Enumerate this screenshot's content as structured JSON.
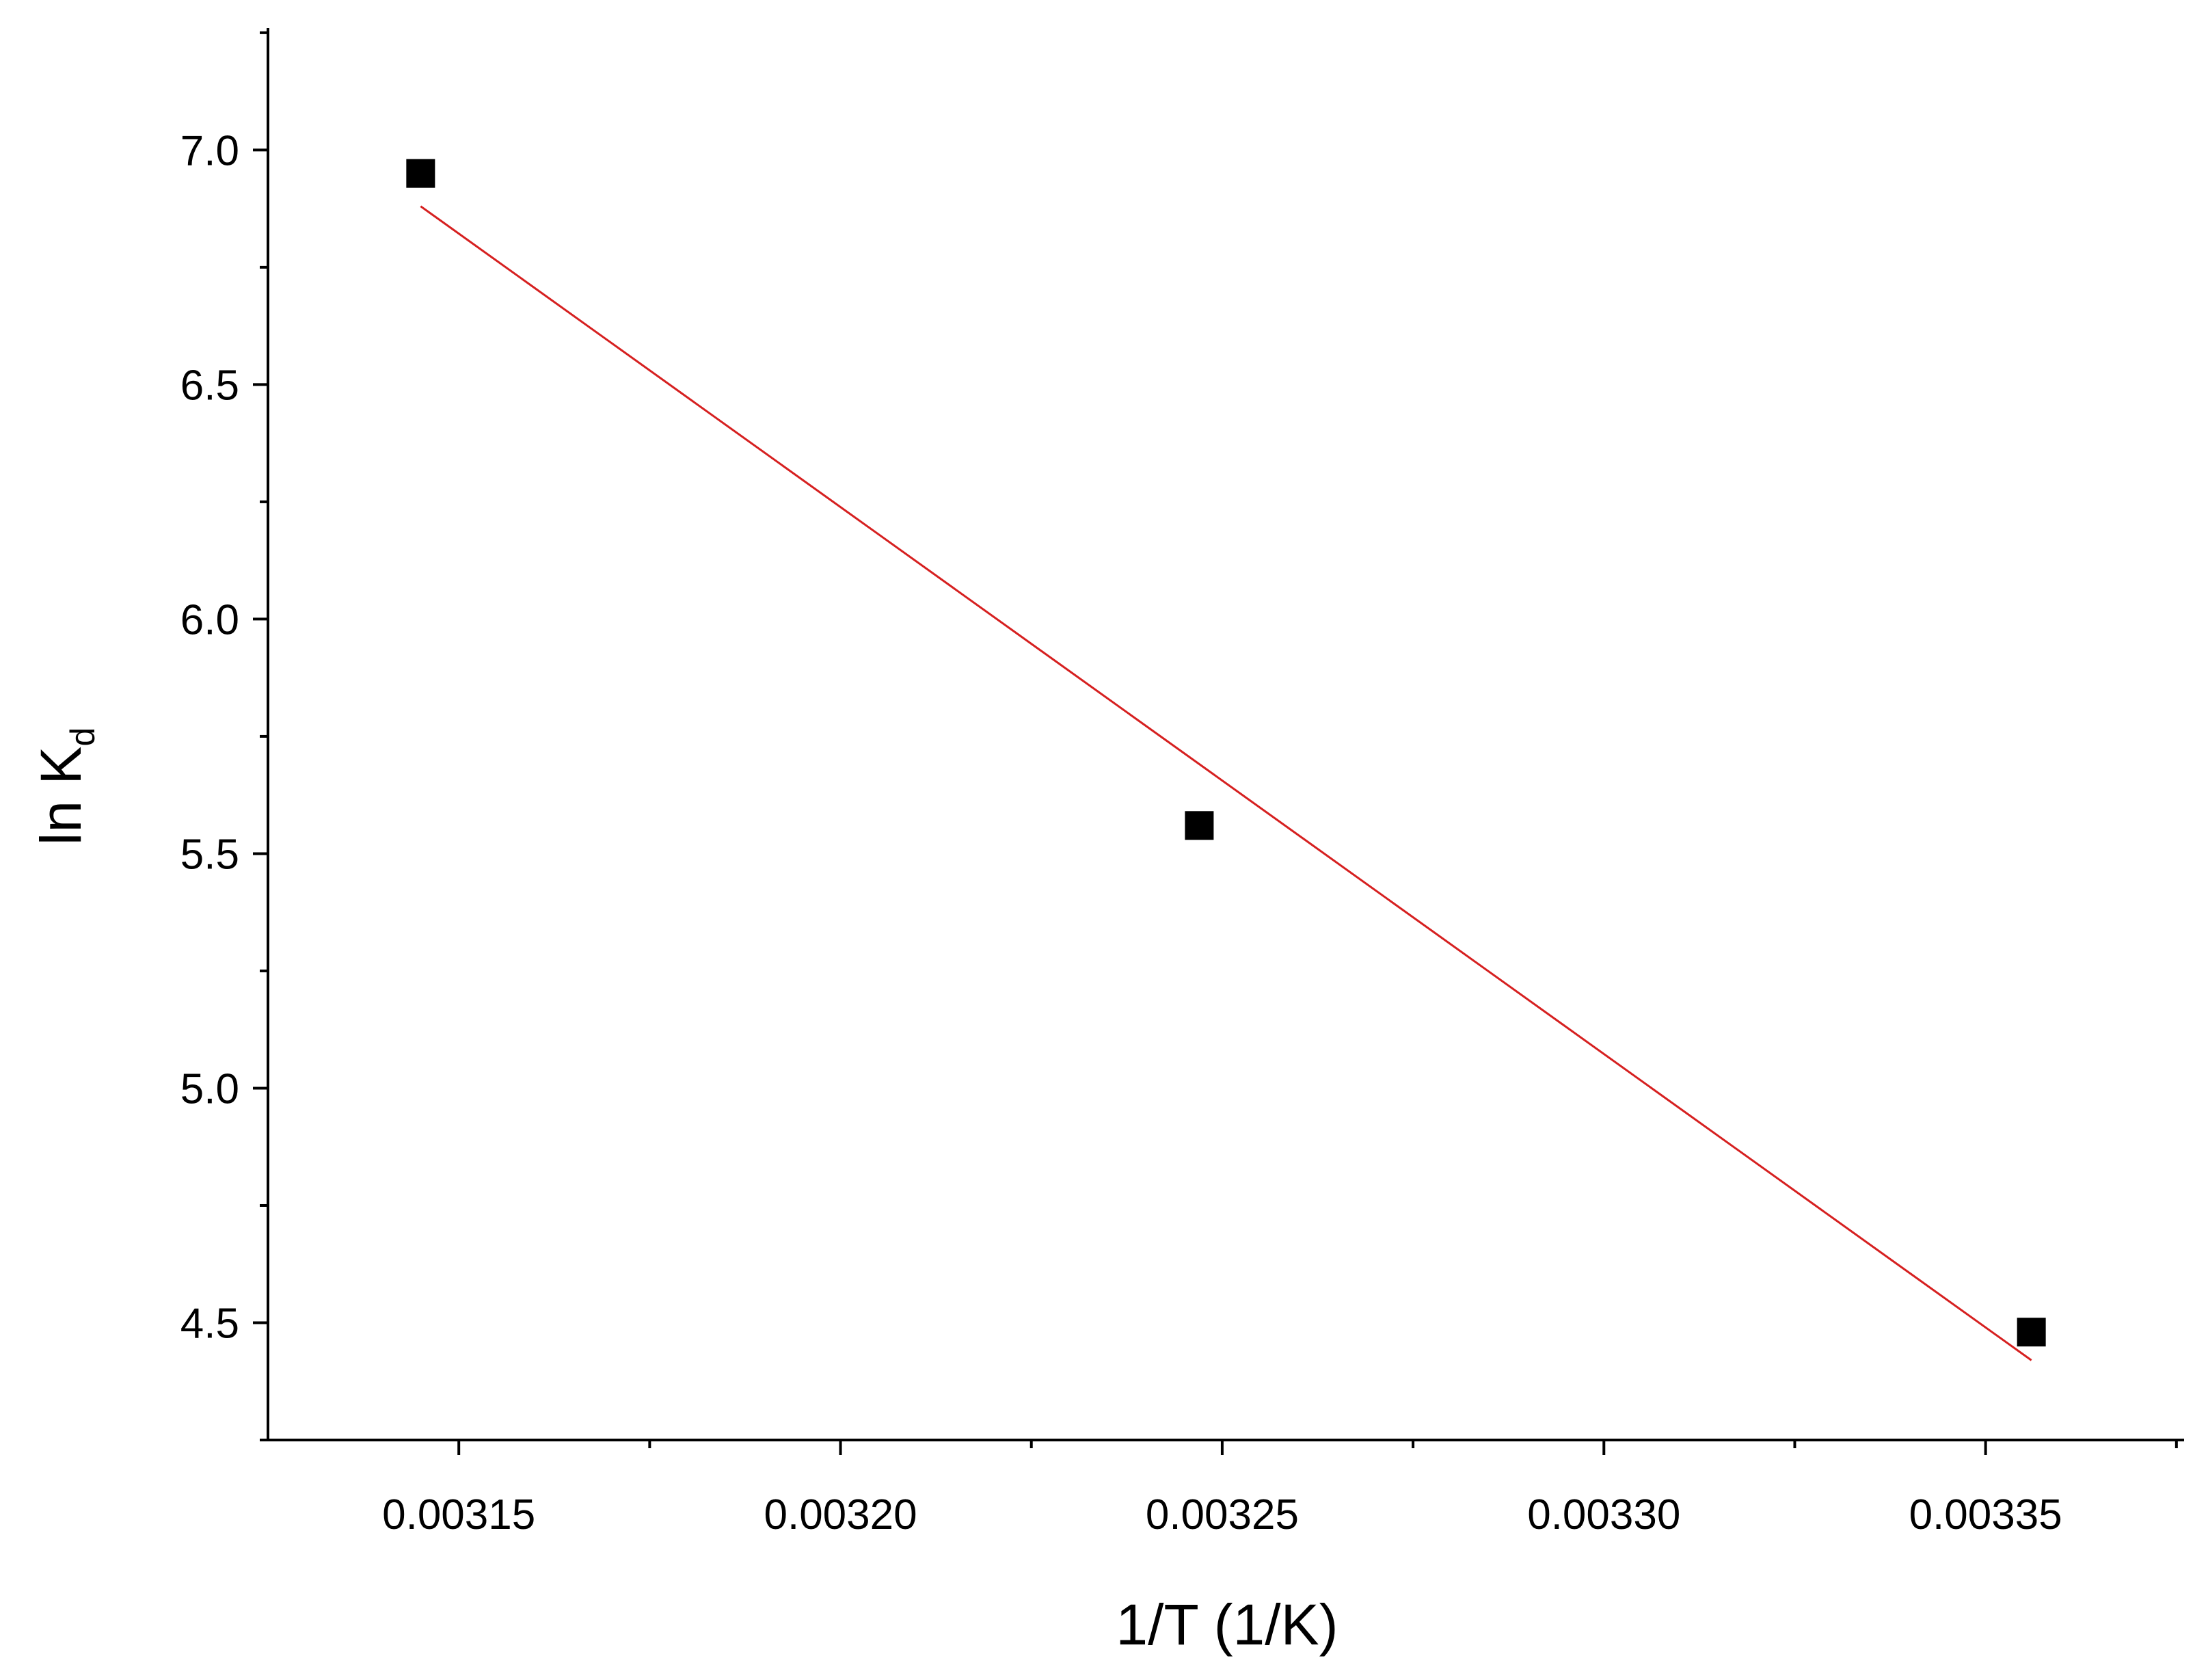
{
  "chart_data": {
    "type": "scatter",
    "xlabel": "1/T (1/K)",
    "ylabel": {
      "text": "ln K",
      "subscript": "d"
    },
    "xlim": [
      0.003125,
      0.003376
    ],
    "ylim": [
      4.25,
      7.26
    ],
    "xticks": [
      0.00315,
      0.0032,
      0.00325,
      0.0033,
      0.00335
    ],
    "xticks_labels": [
      "0.00315",
      "0.00320",
      "0.00325",
      "0.00330",
      "0.00335"
    ],
    "xticks_minor": [
      0.003175,
      0.003225,
      0.003275,
      0.003325,
      0.003375
    ],
    "yticks": [
      {
        "value": 4.5,
        "label": "4.5"
      },
      {
        "value": 5,
        "label": "5.0"
      },
      {
        "value": 5.5,
        "label": "5.5"
      },
      {
        "value": 6,
        "label": "6.0"
      },
      {
        "value": 6.5,
        "label": "6.5"
      },
      {
        "value": 7,
        "label": "7.0"
      }
    ],
    "yticks_minor": [
      4.25,
      4.75,
      5.25,
      5.75,
      6.25,
      6.75,
      7.25
    ],
    "grid": false,
    "series": [
      {
        "kind": "scatter",
        "marker": "square",
        "color": "#000000",
        "x": [
          0.003145,
          0.003247,
          0.003356
        ],
        "values": [
          6.95,
          5.56,
          4.48
        ]
      },
      {
        "kind": "line",
        "color": "#d62020",
        "x": [
          0.003145,
          0.003356
        ],
        "values": [
          6.88,
          4.42
        ]
      }
    ]
  }
}
